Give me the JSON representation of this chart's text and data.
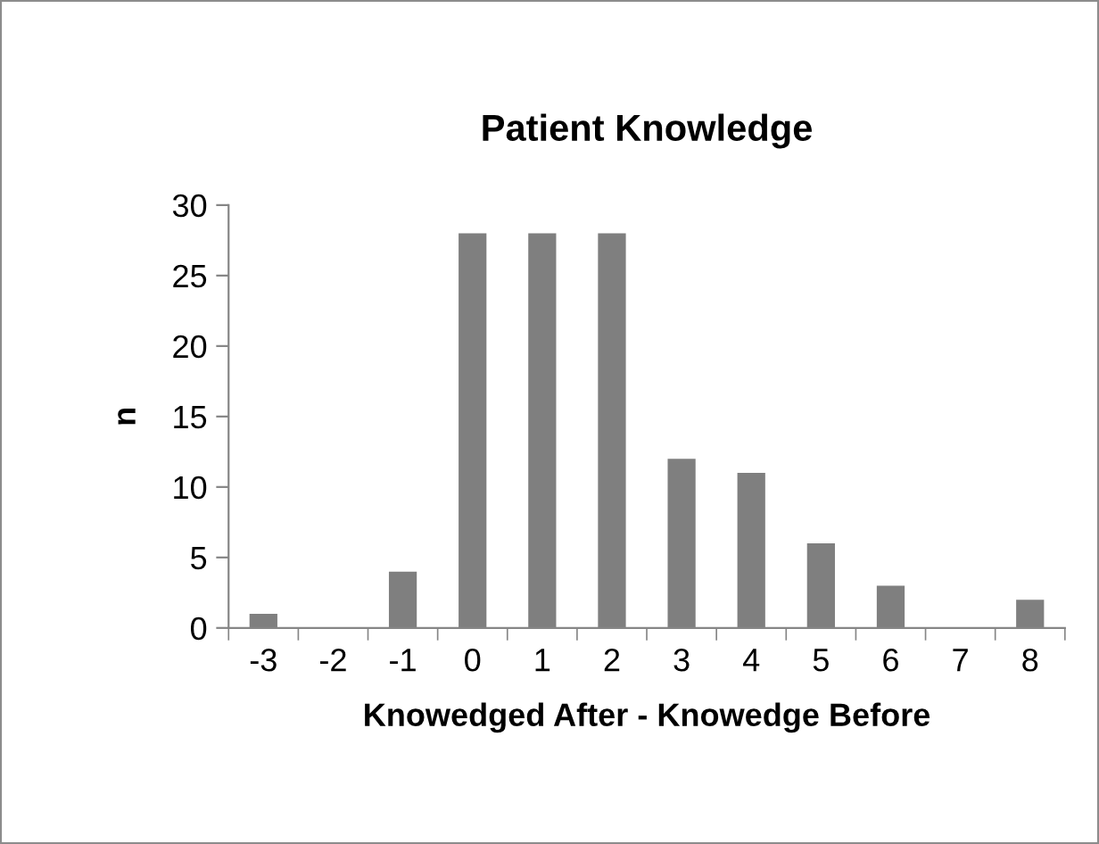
{
  "chart_data": {
    "type": "bar",
    "title": "Patient Knowledge",
    "xlabel": "Knowedged After - Knowedge Before",
    "ylabel": "n",
    "categories": [
      "-3",
      "-2",
      "-1",
      "0",
      "1",
      "2",
      "3",
      "4",
      "5",
      "6",
      "7",
      "8"
    ],
    "values": [
      1,
      0,
      4,
      28,
      28,
      28,
      12,
      11,
      6,
      3,
      0,
      2
    ],
    "color": "#7f7f7f",
    "ylim": [
      0,
      30
    ],
    "yticks": [
      0,
      5,
      10,
      15,
      20,
      25,
      30
    ],
    "grid": false,
    "legend": false
  }
}
